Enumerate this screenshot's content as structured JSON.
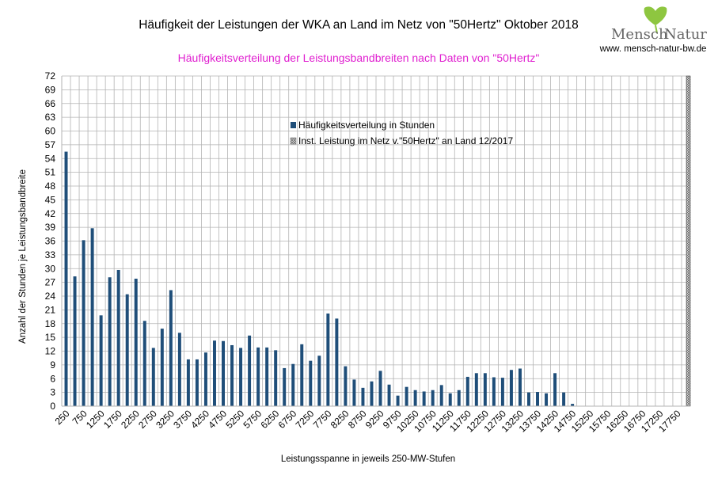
{
  "chart_data": {
    "type": "bar",
    "title": "Häufigkeit der Leistungen der WKA an Land im Netz von \"50Hertz\" Oktober 2018",
    "subtitle": "Häufigkeitsverteilung der Leistungsbandbreiten nach Daten von \"50Hertz\"",
    "xlabel": "Leistungsspanne in jeweils 250-MW-Stufen",
    "ylabel": "Anzahl der Stunden je Leistungsbandbreite",
    "ylim": [
      0,
      72
    ],
    "yticks": [
      0,
      3,
      6,
      9,
      12,
      15,
      18,
      21,
      24,
      27,
      30,
      33,
      36,
      39,
      42,
      45,
      48,
      51,
      54,
      57,
      60,
      63,
      66,
      69,
      72
    ],
    "grid": true,
    "legend_position": "top-center",
    "x_tick_labels": [
      "250",
      "750",
      "1250",
      "1750",
      "2250",
      "2750",
      "3250",
      "3750",
      "4250",
      "4750",
      "5250",
      "5750",
      "6250",
      "6750",
      "7250",
      "7750",
      "8250",
      "8750",
      "9250",
      "9750",
      "10250",
      "10750",
      "11250",
      "11750",
      "12250",
      "12750",
      "13250",
      "13750",
      "14250",
      "14750",
      "15250",
      "15750",
      "16250",
      "16750",
      "17250",
      "17750"
    ],
    "categories": [
      "250",
      "500",
      "750",
      "1000",
      "1250",
      "1500",
      "1750",
      "2000",
      "2250",
      "2500",
      "2750",
      "3000",
      "3250",
      "3500",
      "3750",
      "4000",
      "4250",
      "4500",
      "4750",
      "5000",
      "5250",
      "5500",
      "5750",
      "6000",
      "6250",
      "6500",
      "6750",
      "7000",
      "7250",
      "7500",
      "7750",
      "8000",
      "8250",
      "8500",
      "8750",
      "9000",
      "9250",
      "9500",
      "9750",
      "10000",
      "10250",
      "10500",
      "10750",
      "11000",
      "11250",
      "11500",
      "11750",
      "12000",
      "12250",
      "12500",
      "12750",
      "13000",
      "13250",
      "13500",
      "13750",
      "14000",
      "14250",
      "14500",
      "14750",
      "15000",
      "15250",
      "15500",
      "15750",
      "16000",
      "16250",
      "16500",
      "16750",
      "17000",
      "17250",
      "17500",
      "17750",
      "18000"
    ],
    "series": [
      {
        "name": "Häufigkeitsverteilung in Stunden",
        "color": "#1f4e79",
        "values": [
          55.5,
          28.3,
          36.2,
          38.8,
          19.8,
          28.1,
          29.7,
          24.4,
          27.8,
          18.6,
          12.7,
          16.9,
          25.3,
          16.0,
          10.2,
          10.2,
          11.7,
          14.3,
          14.2,
          13.3,
          12.7,
          15.4,
          12.8,
          12.8,
          12.2,
          8.3,
          9.2,
          13.5,
          9.9,
          11.0,
          20.2,
          19.1,
          8.7,
          5.8,
          4.0,
          5.4,
          7.7,
          4.7,
          2.3,
          4.2,
          3.5,
          3.2,
          3.5,
          4.6,
          2.8,
          3.5,
          6.4,
          7.2,
          7.2,
          6.3,
          6.2,
          7.9,
          8.2,
          3.0,
          3.1,
          2.8,
          7.2,
          3.0,
          0.5,
          0,
          0,
          0,
          0,
          0,
          0,
          0,
          0,
          0,
          0,
          0,
          0,
          0
        ]
      },
      {
        "name": "Inst. Leistung im Netz v.\"50Hertz\" an Land 12/2017",
        "color": "#888888",
        "pattern": "crosshatch",
        "value": 72
      }
    ]
  },
  "branding": {
    "logo_left": "Mensch",
    "logo_right": "Natur",
    "url": "www. mensch-natur-bw.de",
    "logo_color": "#666666",
    "leaf_color": "#8ec640"
  },
  "colors": {
    "title": "#000000",
    "subtitle": "#e020d0",
    "grid": "#b3b3b3"
  }
}
